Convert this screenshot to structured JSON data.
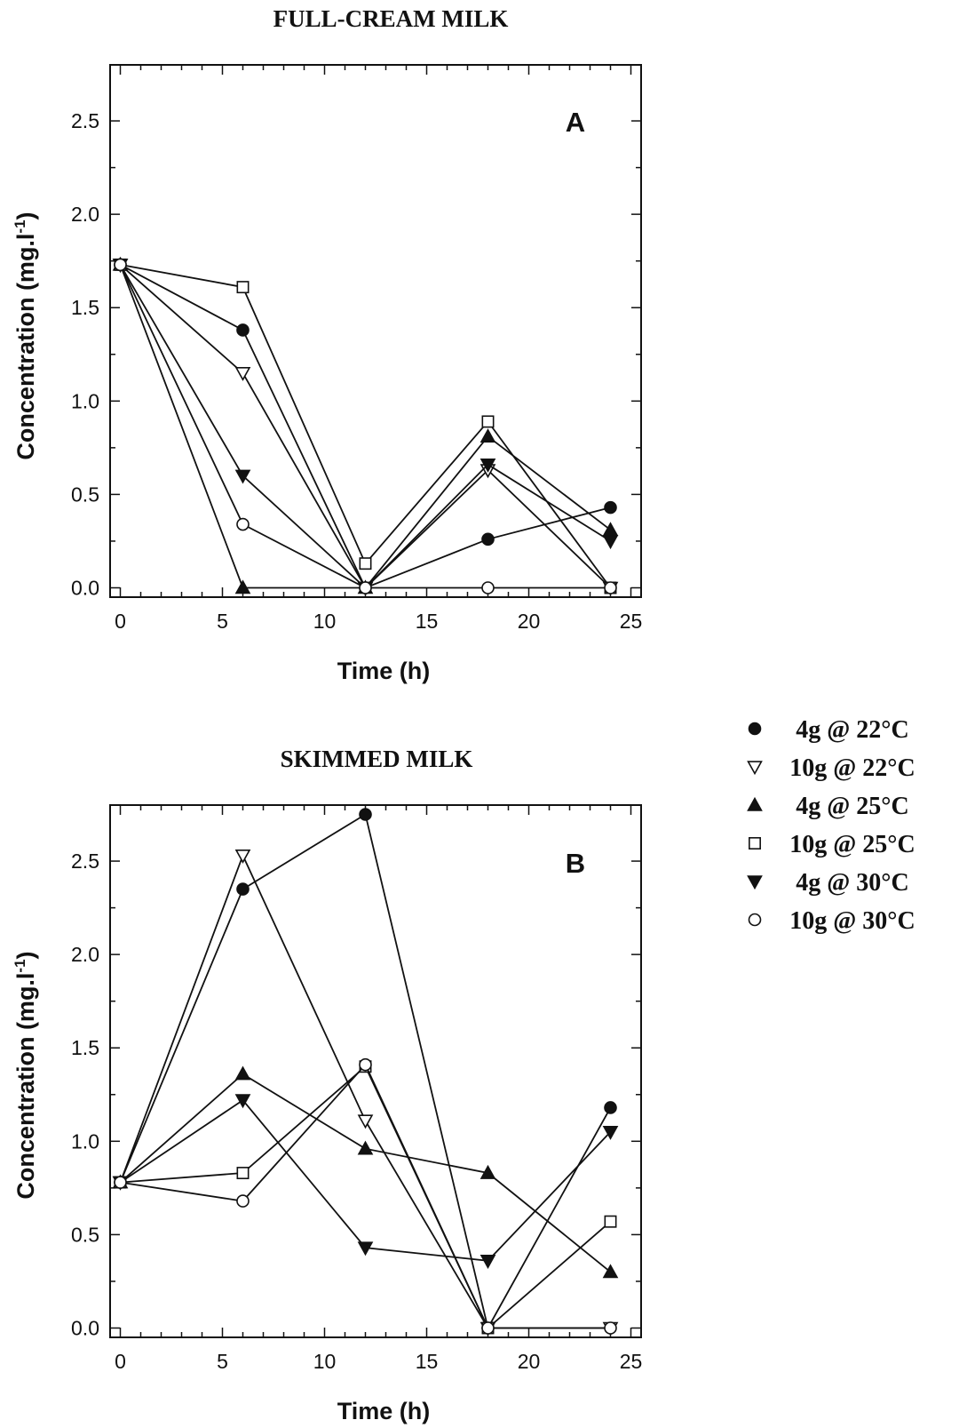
{
  "legend": [
    {
      "label": "4g @ 22°C",
      "marker": "circle",
      "fill": "#111111"
    },
    {
      "label": "10g @ 22°C",
      "marker": "triangle-down",
      "fill": "#ffffff"
    },
    {
      "label": "4g @ 25°C",
      "marker": "triangle-up",
      "fill": "#111111"
    },
    {
      "label": "10g @ 25°C",
      "marker": "square",
      "fill": "#ffffff"
    },
    {
      "label": "4g @ 30°C",
      "marker": "triangle-down",
      "fill": "#111111"
    },
    {
      "label": "10g @ 30°C",
      "marker": "circle",
      "fill": "#ffffff"
    }
  ],
  "chart_data": [
    {
      "type": "line",
      "title": "FULL-CREAM MILK",
      "panel_label": "A",
      "xlabel": "Time (h)",
      "ylabel": "Concentration (mg.l",
      "ylabel_sup": "-1",
      "ylabel_close": ")",
      "xlim": [
        -0.5,
        25.5
      ],
      "ylim": [
        -0.05,
        2.8
      ],
      "xticks": [
        0,
        5,
        10,
        15,
        20,
        25
      ],
      "yticks": [
        "0.0",
        "0.5",
        "1.0",
        "1.5",
        "2.0",
        "2.5"
      ],
      "x": [
        0,
        6,
        12,
        18,
        24
      ],
      "series": [
        {
          "name": "4g @ 22°C",
          "values": [
            1.73,
            1.38,
            0.0,
            0.26,
            0.43
          ]
        },
        {
          "name": "10g @ 22°C",
          "values": [
            1.73,
            1.15,
            0.0,
            0.63,
            0.0
          ]
        },
        {
          "name": "4g @ 25°C",
          "values": [
            1.73,
            0.0,
            0.0,
            0.81,
            0.31
          ]
        },
        {
          "name": "10g @ 25°C",
          "values": [
            1.73,
            1.61,
            0.13,
            0.89,
            0.0
          ]
        },
        {
          "name": "4g @ 30°C",
          "values": [
            1.73,
            0.6,
            0.0,
            0.66,
            0.25
          ]
        },
        {
          "name": "10g @ 30°C",
          "values": [
            1.73,
            0.34,
            0.0,
            0.0,
            0.0
          ]
        }
      ]
    },
    {
      "type": "line",
      "title": "SKIMMED MILK",
      "panel_label": "B",
      "xlabel": "Time (h)",
      "ylabel": "Concentration (mg.l",
      "ylabel_sup": "-1",
      "ylabel_close": ")",
      "xlim": [
        -0.5,
        25.5
      ],
      "ylim": [
        -0.05,
        2.8
      ],
      "xticks": [
        0,
        5,
        10,
        15,
        20,
        25
      ],
      "yticks": [
        "0.0",
        "0.5",
        "1.0",
        "1.5",
        "2.0",
        "2.5"
      ],
      "x": [
        0,
        6,
        12,
        18,
        24
      ],
      "series": [
        {
          "name": "4g @ 22°C",
          "values": [
            0.78,
            2.35,
            2.75,
            0.0,
            1.18
          ]
        },
        {
          "name": "10g @ 22°C",
          "values": [
            0.78,
            2.53,
            1.11,
            0.0,
            0.0
          ]
        },
        {
          "name": "4g @ 25°C",
          "values": [
            0.78,
            1.36,
            0.96,
            0.83,
            0.3
          ]
        },
        {
          "name": "10g @ 25°C",
          "values": [
            0.78,
            0.83,
            1.4,
            0.0,
            0.57
          ]
        },
        {
          "name": "4g @ 30°C",
          "values": [
            0.78,
            1.22,
            0.43,
            0.36,
            1.05
          ]
        },
        {
          "name": "10g @ 30°C",
          "values": [
            0.78,
            0.68,
            1.41,
            0.0,
            0.0
          ]
        }
      ]
    }
  ]
}
